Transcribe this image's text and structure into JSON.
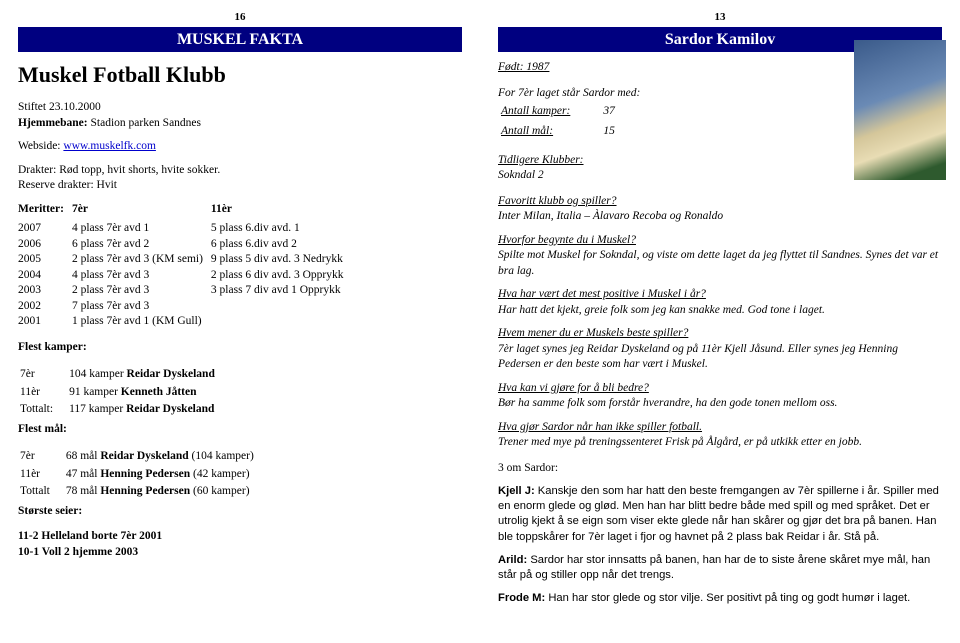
{
  "left": {
    "page_num": "16",
    "header": "MUSKEL FAKTA",
    "club_title": "Muskel Fotball Klubb",
    "founded": "Stiftet 23.10.2000",
    "home_ground": "Hjemmebane: Stadion parken Sandnes",
    "website_label": "Webside: ",
    "website_url": "www.muskelfk.com",
    "kit": "Drakter: Rød topp, hvit shorts, hvite sokker.",
    "reserve_kit": "Reserve drakter: Hvit",
    "merits_label": "Meritter:",
    "col_7er": "7èr",
    "col_11er": "11èr",
    "merits": [
      {
        "y": "2007",
        "c1": "4 plass 7èr avd 1",
        "c2": "5 plass 6.div avd. 1"
      },
      {
        "y": "2006",
        "c1": "6 plass 7èr avd 2",
        "c2": "6 plass 6.div avd 2"
      },
      {
        "y": "2005",
        "c1": "2 plass 7èr avd 3 (KM semi)",
        "c2": "9 plass 5 div avd. 3 Nedrykk"
      },
      {
        "y": "2004",
        "c1": "4 plass 7èr avd 3",
        "c2": "2 plass 6 div avd. 3 Opprykk"
      },
      {
        "y": "2003",
        "c1": "2 plass 7èr avd 3",
        "c2": "3 plass 7 div avd 1 Opprykk"
      },
      {
        "y": "2002",
        "c1": "7 plass 7èr avd 3",
        "c2": ""
      },
      {
        "y": "2001",
        "c1": "1 plass 7èr avd 1 (KM Gull)",
        "c2": ""
      }
    ],
    "most_matches_label": "Flest kamper:",
    "matches": [
      {
        "k": "7èr",
        "v": "104 kamper Reidar Dyskeland"
      },
      {
        "k": "11èr",
        "v": "91 kamper Kenneth Jåtten"
      },
      {
        "k": "Tottalt:",
        "v": "117 kamper Reidar Dyskeland"
      }
    ],
    "most_goals_label": "Flest mål:",
    "goals": [
      {
        "k": "7èr",
        "v": "68 mål Reidar Dyskeland (104 kamper)"
      },
      {
        "k": "11èr",
        "v": "47 mål Henning Pedersen (42 kamper)"
      },
      {
        "k": "Tottalt",
        "v": "78 mål Henning Pedersen (60 kamper)"
      }
    ],
    "biggest_win_label": "Største seier:",
    "biggest_wins": [
      "11-2  Helleland borte 7èr 2001",
      "10-1  Voll 2 hjemme 2003"
    ]
  },
  "right": {
    "page_num": "13",
    "header": "Sardor Kamilov",
    "born": "Født: 1987",
    "intro": "For 7èr laget står Sardor med:",
    "stats_matches_k": "Antall kamper:",
    "stats_matches_v": "37",
    "stats_goals_k": "Antall mål:",
    "stats_goals_v": "15",
    "prev_clubs_label": "Tidligere Klubber:",
    "prev_clubs": "Sokndal 2",
    "fav_q": "Favoritt klubb og spiller?",
    "fav_a": "Inter Milan, Italia – Àlavaro Recoba og Ronaldo",
    "qa": [
      {
        "q": "Hvorfor begynte du i Muskel?",
        "a": "Spilte mot Muskel for Sokndal, og viste om dette laget da jeg flyttet til Sandnes. Synes det var et bra lag."
      },
      {
        "q": "Hva har vært det mest positive i Muskel i år?",
        "a": "Har hatt det kjekt, greie folk som jeg kan snakke med. God tone i laget."
      },
      {
        "q": "Hvem mener du er Muskels beste spiller?",
        "a": "7èr laget synes jeg Reidar Dyskeland og på 11èr Kjell Jåsund. Eller synes jeg Henning Pedersen er den beste som har vært i Muskel."
      },
      {
        "q": "Hva kan vi gjøre for å bli bedre?",
        "a": "Bør ha samme folk som forstår hverandre, ha den gode tonen mellom oss."
      },
      {
        "q": "Hva gjør Sardor når han ikke spiller fotball.",
        "a": "Trener med mye på treningssenteret Frisk på Ålgård, er på utkikk etter en jobb."
      }
    ],
    "about_label": "3 om Sardor:",
    "about": [
      {
        "who": "Kjell J:",
        "text": " Kanskje den som har hatt den beste fremgangen av 7èr spillerne i år. Spiller med en enorm glede og glød. Men han har blitt bedre både med spill og med språket. Det er utrolig kjekt å se eign som viser ekte glede når han skårer og gjør det bra på banen. Han ble toppskårer for 7èr laget i fjor og havnet på 2 plass bak Reidar i år. Stå på."
      },
      {
        "who": "Arild:",
        "text": " Sardor har stor innsatts på banen, han har de to siste årene skåret mye mål, han står på og stiller opp når det trengs."
      },
      {
        "who": "Frode M:",
        "text": " Han har stor glede og stor vilje. Ser positivt på ting og godt humør i laget."
      }
    ]
  }
}
